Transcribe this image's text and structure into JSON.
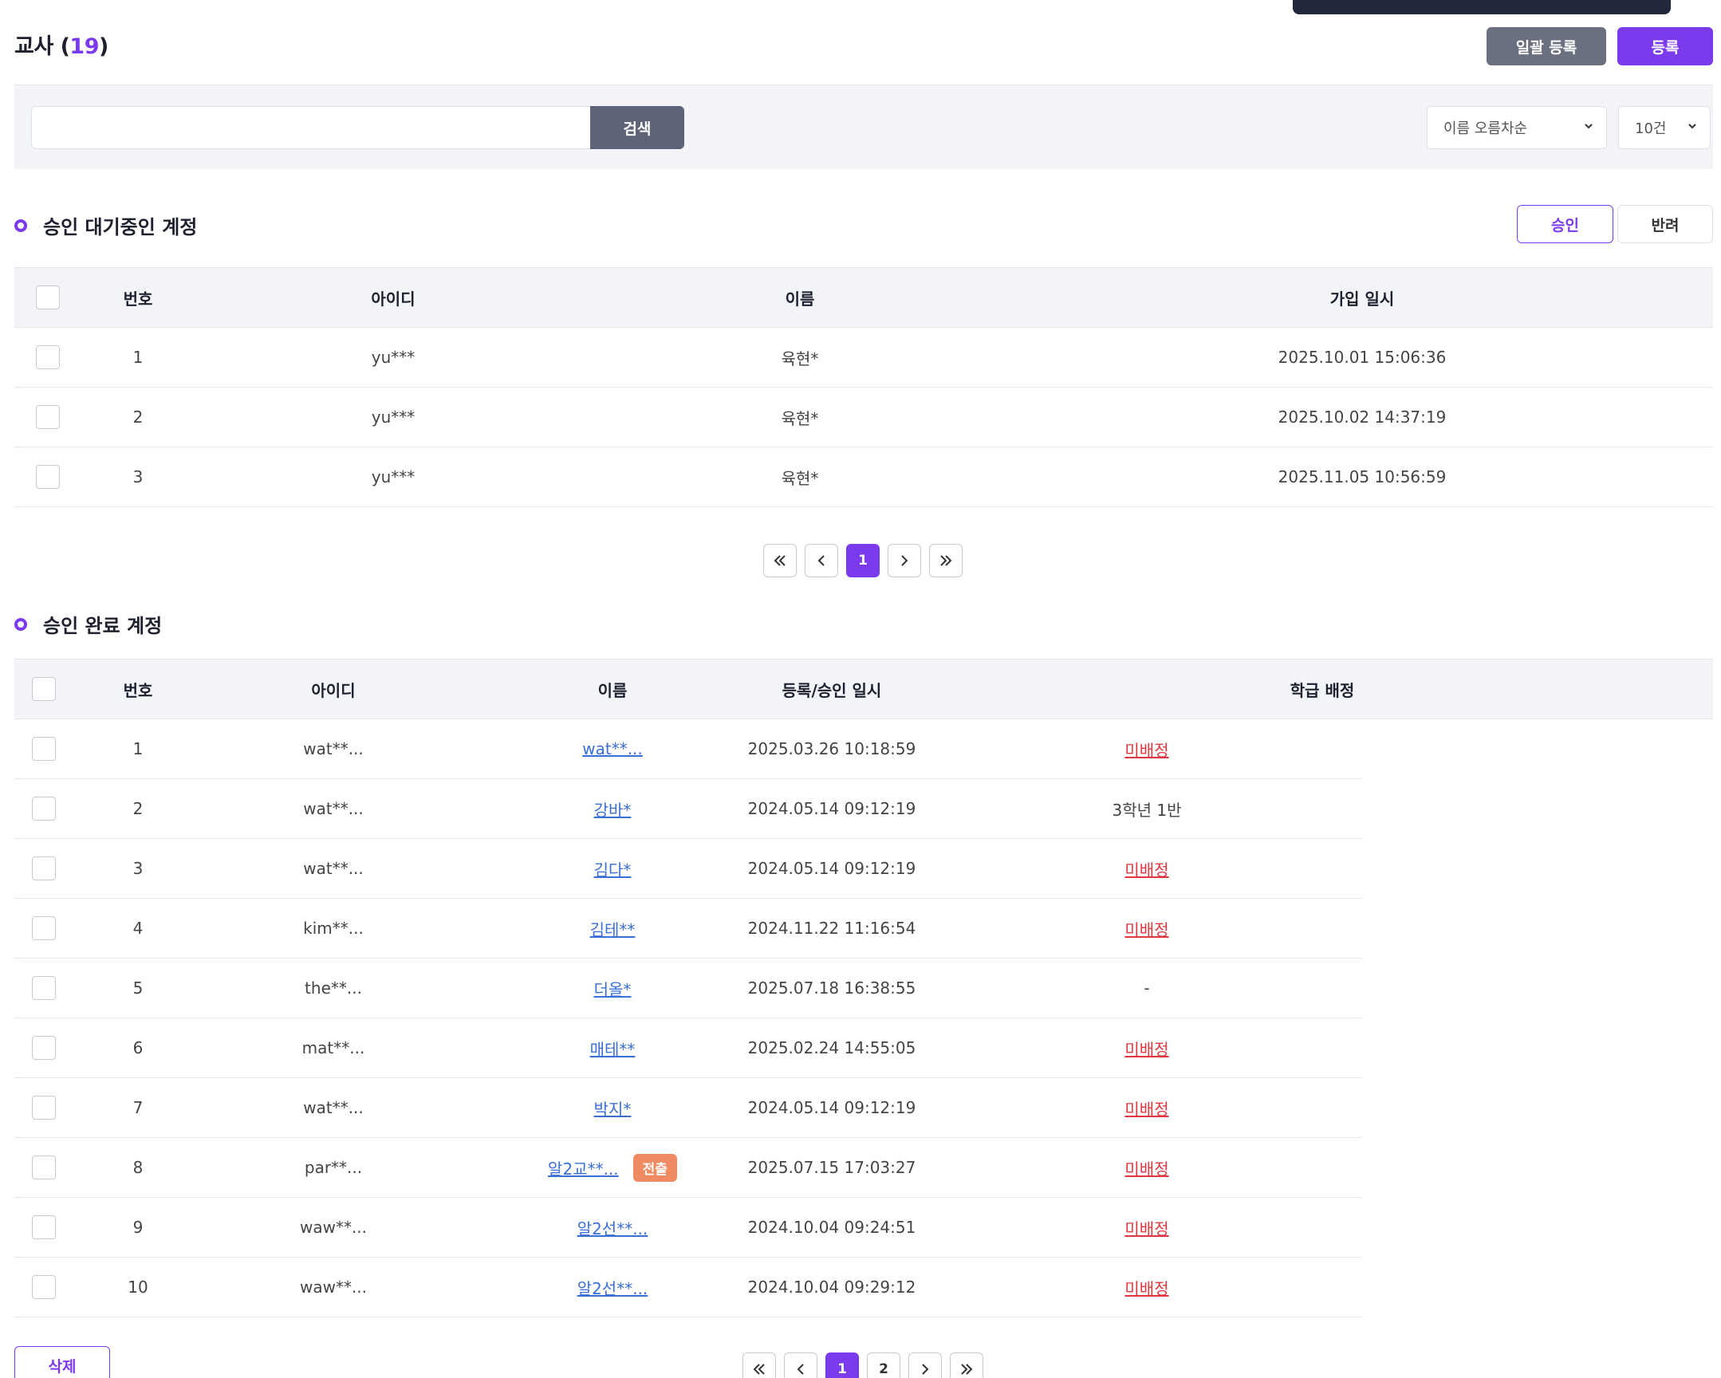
{
  "header": {
    "title": "교사 (",
    "count": "19",
    "title_close": ")",
    "bulk_register_label": "일괄 등록",
    "register_label": "등록"
  },
  "search": {
    "placeholder": "",
    "button_label": "검색",
    "sort_value": "이름 오름차순",
    "page_size_value": "10건"
  },
  "pending": {
    "title": "승인 대기중인 계정",
    "approve_label": "승인",
    "reject_label": "반려",
    "columns": [
      "번호",
      "아이디",
      "이름",
      "가입 일시"
    ],
    "rows": [
      {
        "no": "1",
        "id": "yu***",
        "name": "육현*",
        "date": "2025.10.01 15:06:36"
      },
      {
        "no": "2",
        "id": "yu***",
        "name": "육현*",
        "date": "2025.10.02 14:37:19"
      },
      {
        "no": "3",
        "id": "yu***",
        "name": "육현*",
        "date": "2025.11.05 10:56:59"
      }
    ],
    "pages": [
      "1"
    ],
    "current_page": "1"
  },
  "approved": {
    "title": "승인 완료 계정",
    "columns": [
      "번호",
      "아이디",
      "이름",
      "등록/승인 일시",
      "학급 배정"
    ],
    "rows": [
      {
        "no": "1",
        "id": "wat**...",
        "name": "wat**...",
        "tag": "",
        "date": "2025.03.26 10:18:59",
        "class": "미배정",
        "unassigned": true
      },
      {
        "no": "2",
        "id": "wat**...",
        "name": "강바*",
        "tag": "",
        "date": "2024.05.14 09:12:19",
        "class": "3학년 1반",
        "unassigned": false
      },
      {
        "no": "3",
        "id": "wat**...",
        "name": "김다*",
        "tag": "",
        "date": "2024.05.14 09:12:19",
        "class": "미배정",
        "unassigned": true
      },
      {
        "no": "4",
        "id": "kim**...",
        "name": "김테**",
        "tag": "",
        "date": "2024.11.22 11:16:54",
        "class": "미배정",
        "unassigned": true
      },
      {
        "no": "5",
        "id": "the**...",
        "name": "더올*",
        "tag": "",
        "date": "2025.07.18 16:38:55",
        "class": "-",
        "unassigned": false
      },
      {
        "no": "6",
        "id": "mat**...",
        "name": "매테**",
        "tag": "",
        "date": "2025.02.24 14:55:05",
        "class": "미배정",
        "unassigned": true
      },
      {
        "no": "7",
        "id": "wat**...",
        "name": "박지*",
        "tag": "",
        "date": "2024.05.14 09:12:19",
        "class": "미배정",
        "unassigned": true
      },
      {
        "no": "8",
        "id": "par**...",
        "name": "알2교**...",
        "tag": "전출",
        "date": "2025.07.15 17:03:27",
        "class": "미배정",
        "unassigned": true
      },
      {
        "no": "9",
        "id": "waw**...",
        "name": "알2선**...",
        "tag": "",
        "date": "2024.10.04 09:24:51",
        "class": "미배정",
        "unassigned": true
      },
      {
        "no": "10",
        "id": "waw**...",
        "name": "알2선**...",
        "tag": "",
        "date": "2024.10.04 09:29:12",
        "class": "미배정",
        "unassigned": true
      }
    ],
    "pages": [
      "1",
      "2"
    ],
    "current_page": "1",
    "delete_label": "삭제"
  },
  "icons": {
    "first": "double-chevron-left-icon",
    "prev": "chevron-left-icon",
    "next": "chevron-right-icon",
    "last": "double-chevron-right-icon",
    "dropdown": "chevron-down-icon"
  },
  "colors": {
    "accent": "#7c3aed",
    "danger": "#e2373f",
    "link": "#3a6fd8",
    "tag": "#f08a62",
    "dark_button": "#6b7080"
  }
}
